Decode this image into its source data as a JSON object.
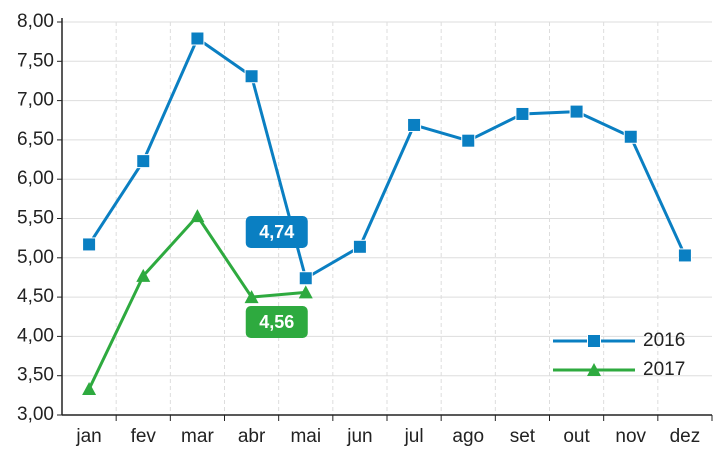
{
  "chart_data": {
    "type": "line",
    "categories": [
      "jan",
      "fev",
      "mar",
      "abr",
      "mai",
      "jun",
      "jul",
      "ago",
      "set",
      "out",
      "nov",
      "dez"
    ],
    "series": [
      {
        "name": "2016",
        "color": "#0a7fc2",
        "marker": "square",
        "values": [
          5.17,
          6.23,
          7.79,
          7.31,
          4.74,
          5.14,
          6.69,
          6.49,
          6.83,
          6.86,
          6.54,
          5.03
        ],
        "value_labels": [
          null,
          null,
          null,
          null,
          "4,74",
          null,
          null,
          null,
          null,
          null,
          null,
          null
        ]
      },
      {
        "name": "2017",
        "color": "#2eaa3f",
        "marker": "triangle",
        "values": [
          3.33,
          4.77,
          5.53,
          4.5,
          4.56,
          null,
          null,
          null,
          null,
          null,
          null,
          null
        ],
        "value_labels": [
          null,
          null,
          null,
          null,
          "4,56",
          null,
          null,
          null,
          null,
          null,
          null,
          null
        ]
      }
    ],
    "ylim": [
      3,
      8
    ],
    "yticks": [
      {
        "value": 3,
        "label": "3,00"
      },
      {
        "value": 3.5,
        "label": "3,50"
      },
      {
        "value": 4,
        "label": "4,00"
      },
      {
        "value": 4.5,
        "label": "4,50"
      },
      {
        "value": 5,
        "label": "5,00"
      },
      {
        "value": 5.5,
        "label": "5,50"
      },
      {
        "value": 6,
        "label": "6,00"
      },
      {
        "value": 6.5,
        "label": "6,50"
      },
      {
        "value": 7,
        "label": "7,00"
      },
      {
        "value": 7.5,
        "label": "7,50"
      },
      {
        "value": 8,
        "label": "8,00"
      }
    ],
    "grid": true,
    "legend": "lower right"
  }
}
